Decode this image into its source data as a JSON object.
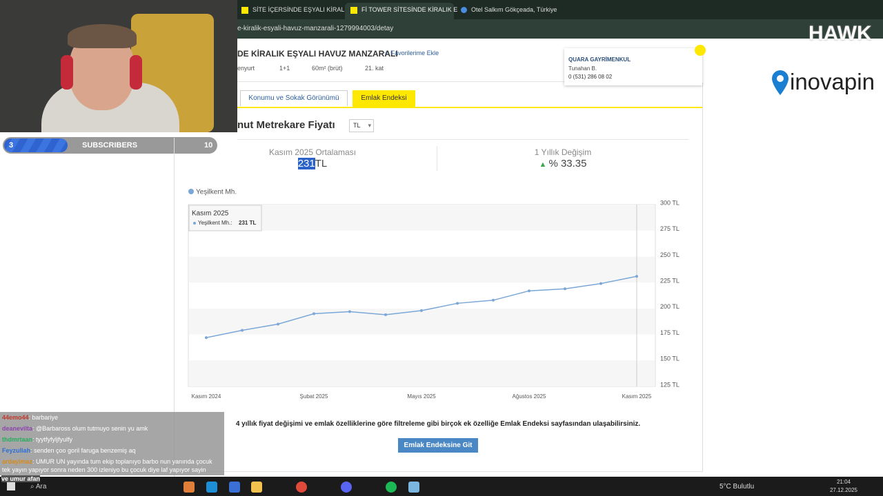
{
  "browser": {
    "tabs": [
      "SİTE İÇERSİNDE EŞYALI KİRALIK",
      "Fİ TOWER SİTESİNDE KİRALIK E",
      "Otel Salkım Gökçeada, Türkiye"
    ],
    "url": "e-kiralik-esyali-havuz-manzarali-1279994003/detay"
  },
  "stream": {
    "subscribers": {
      "current": 3,
      "label": "SUBSCRIBERS",
      "goal": 10
    },
    "logo": "HAWK",
    "chat": [
      {
        "user": "44emo44",
        "message": ": barbariye"
      },
      {
        "user": "deanevilta",
        "message": ": @Barbaross olum tutmuyo senin yu amk"
      },
      {
        "user": "thdmrtaan",
        "message": ": tyytfyfyljfyulfy"
      },
      {
        "user": "Feyzullah",
        "message": ": senden çoo goril faruga benzemiş aq"
      },
      {
        "user": "ardaylmaz",
        "message": ": UMUR UN yayında tum ekip toplanıyo barbo nun yanında çocuk tek yayın yapıyor sonra neden 300 izleniyo bu çocuk diye laf yapıyor sayin atadogan"
      }
    ],
    "chat_footer": "ve umur afan"
  },
  "listing": {
    "title": "DE KİRALIK EŞYALI HAVUZ MANZARALI",
    "favorite": "Favorilerime Ekle",
    "info": [
      "enyurt",
      "1+1",
      "60m² (brüt)",
      "21. kat"
    ],
    "agent": {
      "company": "QUARA GAYRİMENKUL",
      "name": "Tunahan B.",
      "phone": "0 (531) 286 08 02"
    },
    "sponsor": "inovapin",
    "tabs": [
      "Konumu ve Sokak Görünümü",
      "Emlak Endeksi"
    ],
    "section_title": "nut Metrekare Fiyatı",
    "currency": "TL",
    "stats": {
      "avg_label": "Kasım 2025 Ortalaması",
      "avg_value": "231",
      "avg_unit": "TL",
      "change_label": "1 Yıllık Değişim",
      "change_value": "% 33.35"
    },
    "footer_text": "4 yıllık fiyat değişimi ve emlak özelliklerine göre filtreleme gibi birçok ek özelliğe Emlak Endeksi sayfasından ulaşabilirsiniz.",
    "button": "Emlak Endeksine Git"
  },
  "chart": {
    "type": "line",
    "categories": [
      "Kasım 2024",
      null,
      null,
      "Şubat 2025",
      null,
      null,
      "Mayıs 2025",
      null,
      null,
      "Ağustos 2025",
      null,
      null,
      "Kasım 2025"
    ],
    "series": [
      {
        "name": "Yeşilkent Mh.",
        "color": "#7aa7d8",
        "values": [
          172,
          179,
          185,
          195,
          197,
          194,
          198,
          205,
          208,
          217,
          219,
          224,
          231
        ]
      }
    ],
    "ylim": [
      125,
      300
    ],
    "yticks": [
      {
        "value": 125,
        "label": "125 TL"
      },
      {
        "value": 150,
        "label": "150 TL"
      },
      {
        "value": 175,
        "label": "175 TL"
      },
      {
        "value": 200,
        "label": "200 TL"
      },
      {
        "value": 225,
        "label": "225 TL"
      },
      {
        "value": 250,
        "label": "250 TL"
      },
      {
        "value": 275,
        "label": "275 TL"
      },
      {
        "value": 300,
        "label": "300 TL"
      }
    ],
    "tooltip": {
      "title": "Kasım 2025",
      "label": "Yeşilkent Mh.:",
      "value": "231 TL"
    }
  },
  "taskbar": {
    "search": "Ara",
    "weather": "5°C Bulutlu",
    "time": "21:04",
    "date": "27.12.2025"
  }
}
